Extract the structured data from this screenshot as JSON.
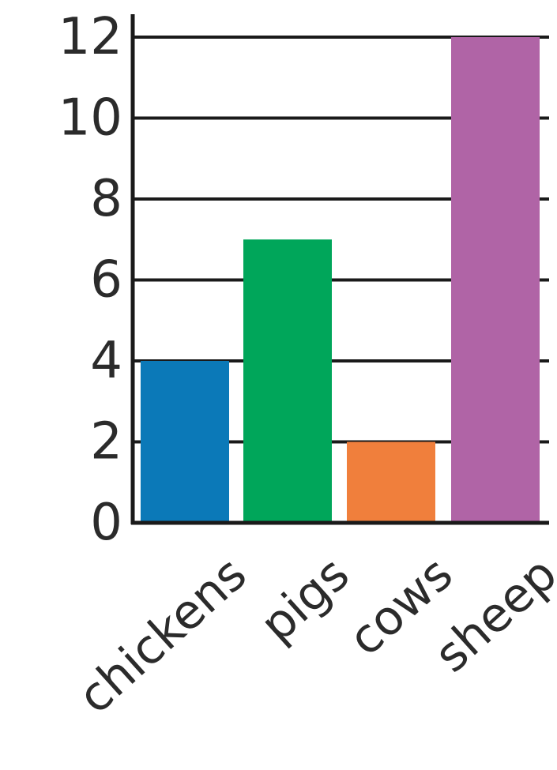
{
  "chart_data": {
    "type": "bar",
    "title": "",
    "xlabel": "",
    "ylabel": "",
    "categories": [
      "chickens",
      "pigs",
      "cows",
      "sheep"
    ],
    "values": [
      4,
      7,
      2,
      12
    ],
    "colors": [
      "#0b79b8",
      "#00a65a",
      "#f07f3c",
      "#b064a6"
    ],
    "ylim": [
      0,
      12
    ],
    "yticks": [
      0,
      2,
      4,
      6,
      8,
      10,
      12
    ],
    "ytick_labels": [
      "0",
      "2",
      "4",
      "6",
      "8",
      "10",
      "12"
    ],
    "grid": true,
    "legend": "none"
  }
}
